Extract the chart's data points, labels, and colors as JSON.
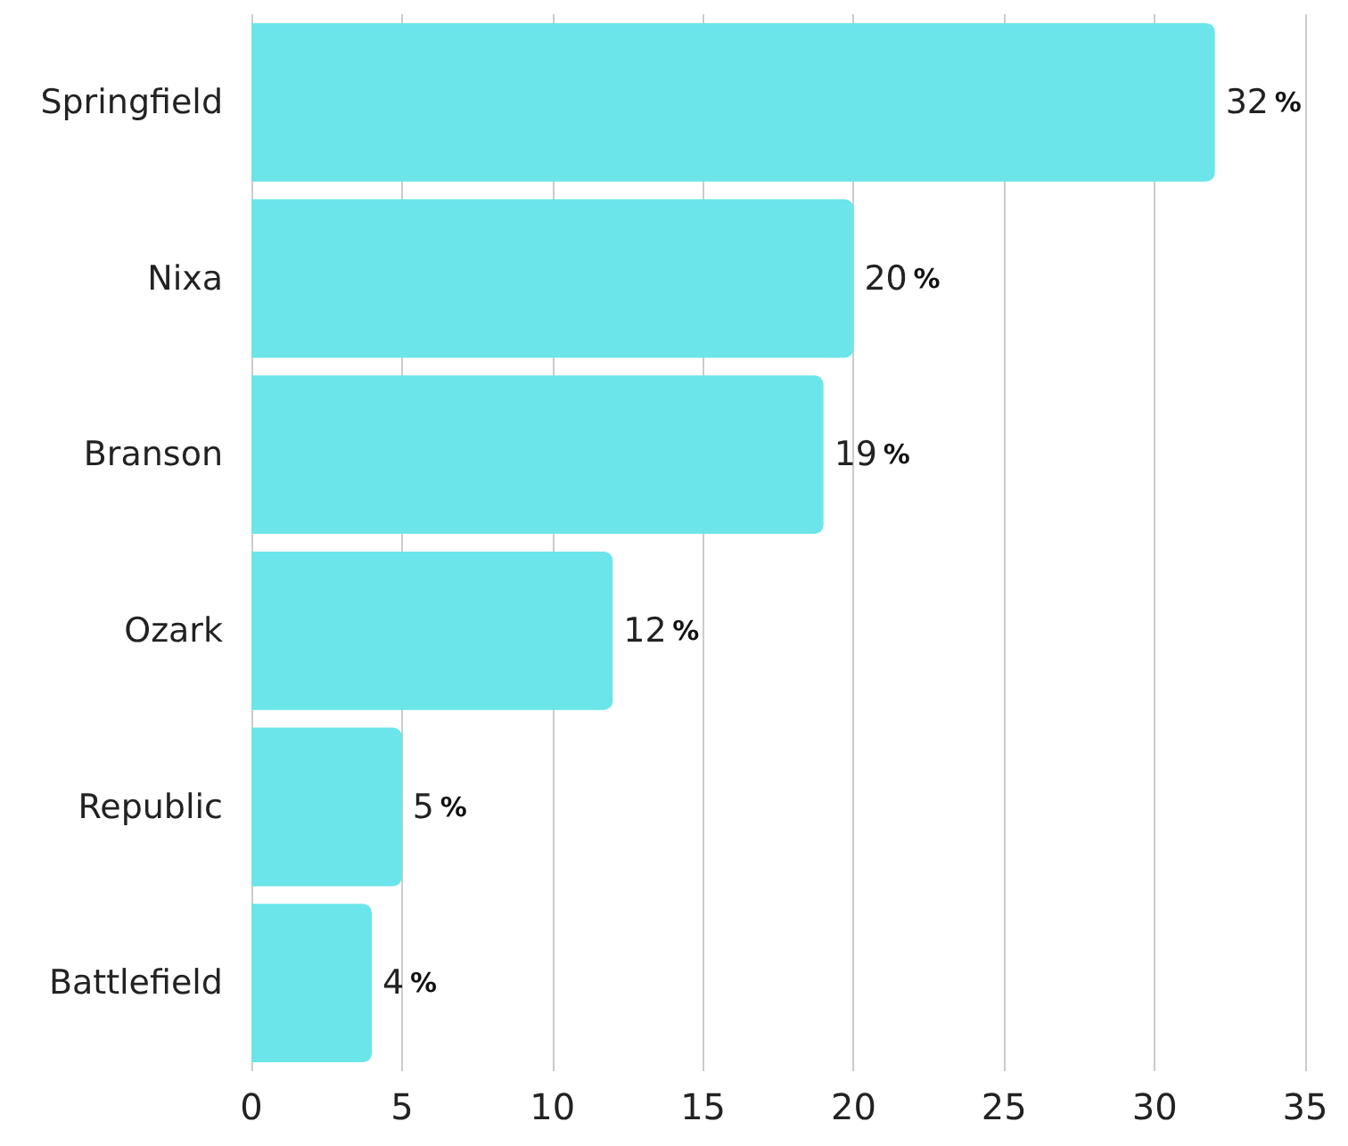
{
  "chart_data": {
    "type": "bar",
    "orientation": "horizontal",
    "categories": [
      "Springfield",
      "Nixa",
      "Branson",
      "Ozark",
      "Republic",
      "Battlefield"
    ],
    "values": [
      32,
      20,
      19,
      12,
      5,
      4
    ],
    "color": "#6be5ea",
    "value_labels": [
      "32 %",
      "20 %",
      "19 %",
      "12 %",
      "5 %",
      "4 %"
    ],
    "xlim": [
      0,
      35
    ],
    "xticks": [
      0,
      5,
      10,
      15,
      20,
      25,
      30,
      35
    ],
    "grid": "x"
  }
}
